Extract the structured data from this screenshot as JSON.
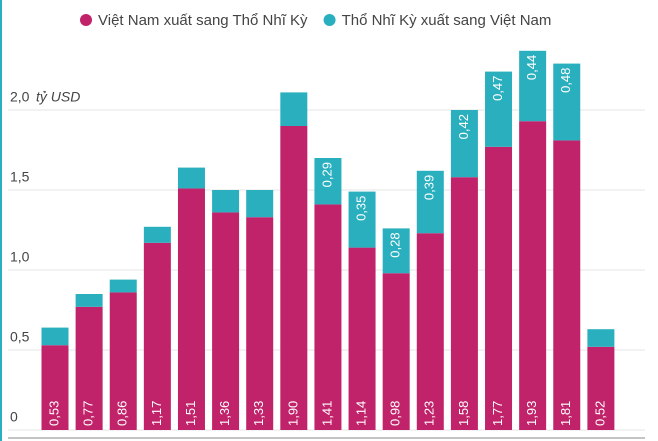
{
  "chart_data": {
    "type": "stacked-bar",
    "y_unit": "tỷ USD",
    "categories": [
      null,
      null,
      null,
      null,
      null,
      null,
      null,
      null,
      null,
      null,
      null,
      null,
      null,
      null,
      null,
      null,
      null
    ],
    "series": [
      {
        "name": "Việt Nam xuất sang Thổ Nhĩ Kỳ",
        "color": "#c0236a",
        "values": [
          0.53,
          0.77,
          0.86,
          1.17,
          1.51,
          1.36,
          1.33,
          1.9,
          1.41,
          1.14,
          0.98,
          1.23,
          1.58,
          1.77,
          1.93,
          1.81,
          0.52
        ],
        "value_labels": [
          "0,53",
          "0,77",
          "0,86",
          "1,17",
          "1,51",
          "1,36",
          "1,33",
          "1,90",
          "1,41",
          "1,14",
          "0,98",
          "1,23",
          "1,58",
          "1,77",
          "1,93",
          "1,81",
          "0,52"
        ]
      },
      {
        "name": "Thổ Nhĩ Kỳ xuất sang Việt Nam",
        "color": "#2aafbf",
        "values": [
          0.11,
          0.08,
          0.08,
          0.1,
          0.13,
          0.14,
          0.17,
          0.21,
          0.29,
          0.35,
          0.28,
          0.39,
          0.42,
          0.47,
          0.44,
          0.48,
          0.11
        ],
        "value_labels": [
          null,
          null,
          null,
          null,
          null,
          null,
          null,
          null,
          "0,29",
          "0,35",
          "0,28",
          "0,39",
          "0,42",
          "0,47",
          "0,44",
          "0,48",
          null
        ]
      }
    ],
    "ylim": [
      0,
      2.5
    ],
    "yticks": [
      0,
      {
        "value": 0.5,
        "label": "0,5"
      },
      {
        "value": 1,
        "label": "1,0"
      },
      {
        "value": 1.5,
        "label": "1,5"
      },
      {
        "value": 2,
        "label": "2,0"
      }
    ],
    "grid": true
  }
}
